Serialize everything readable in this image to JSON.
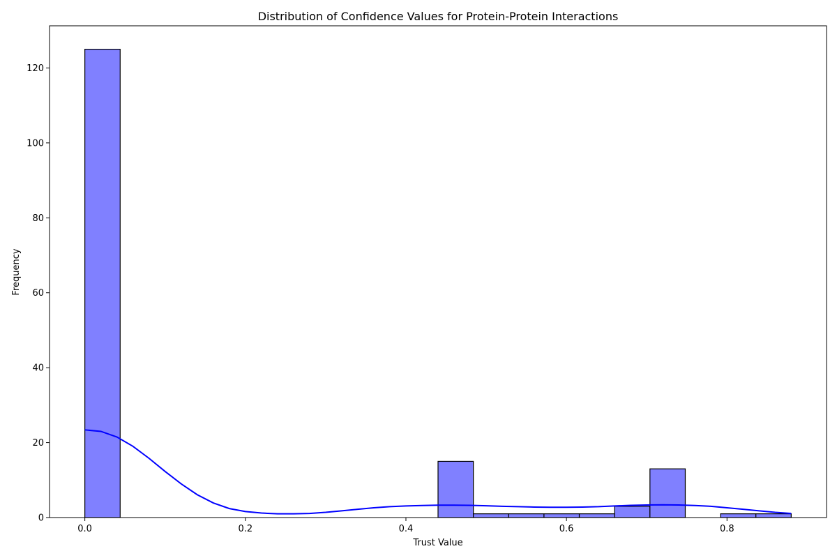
{
  "chart_data": {
    "type": "bar",
    "title": "Distribution of Confidence Values for Protein-Protein Interactions",
    "xlabel": "Trust Value",
    "ylabel": "Frequency",
    "xlim": [
      -0.044,
      0.924
    ],
    "ylim": [
      0,
      131.25
    ],
    "grid": false,
    "colors": {
      "bar_fill": "#8080ff",
      "bar_edge": "#000000",
      "kde_line": "#0000ff"
    },
    "x_ticks": [
      {
        "value": 0.0,
        "label": "0.0"
      },
      {
        "value": 0.2,
        "label": "0.2"
      },
      {
        "value": 0.4,
        "label": "0.4"
      },
      {
        "value": 0.6,
        "label": "0.6"
      },
      {
        "value": 0.8,
        "label": "0.8"
      }
    ],
    "y_ticks": [
      {
        "value": 0,
        "label": "0"
      },
      {
        "value": 20,
        "label": "20"
      },
      {
        "value": 40,
        "label": "40"
      },
      {
        "value": 60,
        "label": "60"
      },
      {
        "value": 80,
        "label": "80"
      },
      {
        "value": 100,
        "label": "100"
      },
      {
        "value": 120,
        "label": "120"
      }
    ],
    "bins": [
      {
        "x0": 0.0,
        "x1": 0.044,
        "count": 125
      },
      {
        "x0": 0.044,
        "x1": 0.088,
        "count": 0
      },
      {
        "x0": 0.088,
        "x1": 0.132,
        "count": 0
      },
      {
        "x0": 0.132,
        "x1": 0.176,
        "count": 0
      },
      {
        "x0": 0.176,
        "x1": 0.22,
        "count": 0
      },
      {
        "x0": 0.22,
        "x1": 0.264,
        "count": 0
      },
      {
        "x0": 0.264,
        "x1": 0.308,
        "count": 0
      },
      {
        "x0": 0.308,
        "x1": 0.352,
        "count": 0
      },
      {
        "x0": 0.352,
        "x1": 0.396,
        "count": 0
      },
      {
        "x0": 0.396,
        "x1": 0.44,
        "count": 0
      },
      {
        "x0": 0.44,
        "x1": 0.484,
        "count": 15
      },
      {
        "x0": 0.484,
        "x1": 0.528,
        "count": 1
      },
      {
        "x0": 0.528,
        "x1": 0.572,
        "count": 1
      },
      {
        "x0": 0.572,
        "x1": 0.616,
        "count": 1
      },
      {
        "x0": 0.616,
        "x1": 0.66,
        "count": 1
      },
      {
        "x0": 0.66,
        "x1": 0.704,
        "count": 3
      },
      {
        "x0": 0.704,
        "x1": 0.748,
        "count": 13
      },
      {
        "x0": 0.748,
        "x1": 0.792,
        "count": 0
      },
      {
        "x0": 0.792,
        "x1": 0.836,
        "count": 1
      },
      {
        "x0": 0.836,
        "x1": 0.88,
        "count": 1
      }
    ],
    "kde": {
      "x": [
        0.0,
        0.02,
        0.04,
        0.06,
        0.08,
        0.1,
        0.12,
        0.14,
        0.16,
        0.18,
        0.2,
        0.22,
        0.24,
        0.26,
        0.28,
        0.3,
        0.32,
        0.34,
        0.36,
        0.38,
        0.4,
        0.42,
        0.44,
        0.46,
        0.48,
        0.5,
        0.52,
        0.54,
        0.56,
        0.58,
        0.6,
        0.62,
        0.64,
        0.66,
        0.68,
        0.7,
        0.72,
        0.74,
        0.76,
        0.78,
        0.8,
        0.82,
        0.84,
        0.86,
        0.88
      ],
      "y": [
        23.4,
        23.0,
        21.5,
        19.0,
        15.8,
        12.3,
        9.0,
        6.1,
        3.9,
        2.4,
        1.6,
        1.2,
        1.0,
        1.0,
        1.1,
        1.4,
        1.8,
        2.2,
        2.6,
        2.9,
        3.1,
        3.2,
        3.3,
        3.3,
        3.25,
        3.15,
        3.0,
        2.9,
        2.8,
        2.75,
        2.75,
        2.8,
        2.9,
        3.1,
        3.25,
        3.35,
        3.4,
        3.35,
        3.2,
        3.0,
        2.6,
        2.2,
        1.8,
        1.4,
        1.1
      ]
    }
  }
}
